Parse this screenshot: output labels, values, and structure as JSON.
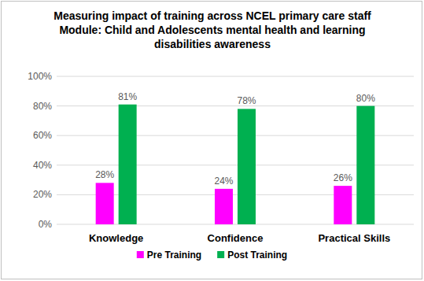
{
  "chart_data": {
    "type": "bar",
    "title": "Measuring impact of training across NCEL primary care staff",
    "subtitle": "Module: Child and Adolescents mental health and learning disabilities awareness",
    "categories": [
      "Knowledge",
      "Confidence",
      "Practical Skills"
    ],
    "series": [
      {
        "name": "Pre Training",
        "color": "#ff00ff",
        "values": [
          28,
          24,
          26
        ],
        "value_labels": [
          "28%",
          "24%",
          "26%"
        ]
      },
      {
        "name": "Post Training",
        "color": "#00b050",
        "values": [
          81,
          78,
          80
        ],
        "value_labels": [
          "81%",
          "78%",
          "80%"
        ]
      }
    ],
    "ylim": [
      0,
      100
    ],
    "yticks": [
      {
        "value": 0,
        "label": "0%"
      },
      {
        "value": 20,
        "label": "20%"
      },
      {
        "value": 40,
        "label": "40%"
      },
      {
        "value": 60,
        "label": "60%"
      },
      {
        "value": 80,
        "label": "80%"
      },
      {
        "value": 100,
        "label": "100%"
      }
    ],
    "grid": true,
    "data_labels": true,
    "legend": "bottom"
  }
}
